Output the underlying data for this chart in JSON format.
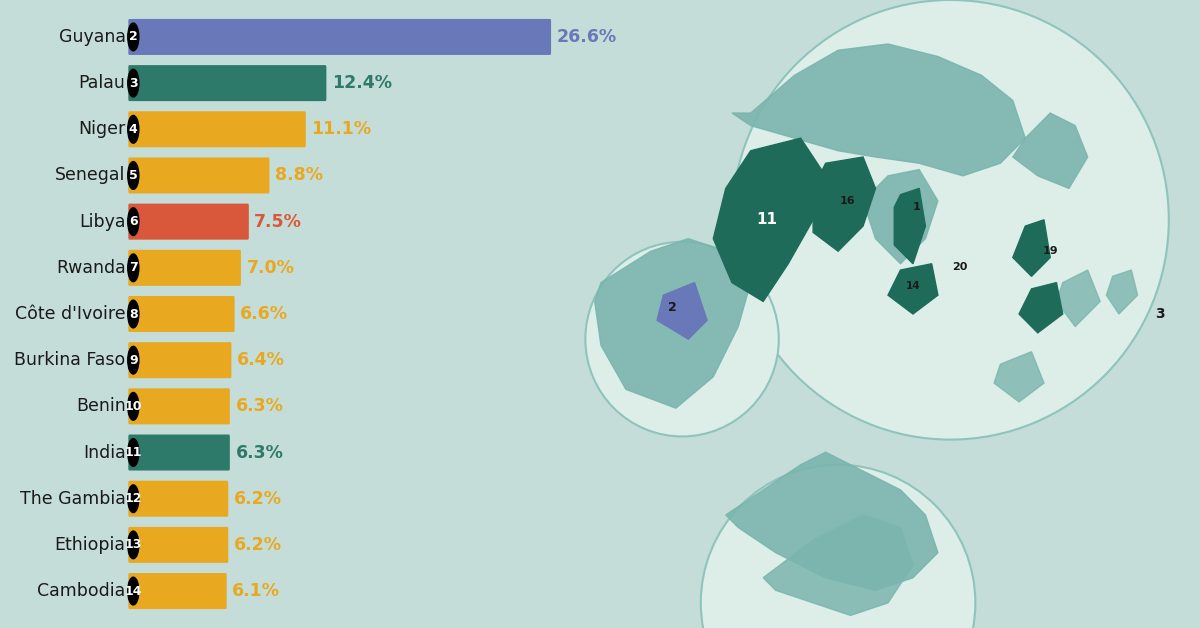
{
  "background_color": "#c5ddd8",
  "categories": [
    "Guyana",
    "Palau",
    "Niger",
    "Senegal",
    "Libya",
    "Rwanda",
    "Côte d'Ivoire",
    "Burkina Faso",
    "Benin",
    "India",
    "The Gambia",
    "Ethiopia",
    "Cambodia"
  ],
  "ranks": [
    2,
    3,
    4,
    5,
    6,
    7,
    8,
    9,
    10,
    11,
    12,
    13,
    14
  ],
  "values": [
    26.6,
    12.4,
    11.1,
    8.8,
    7.5,
    7.0,
    6.6,
    6.4,
    6.3,
    6.3,
    6.2,
    6.2,
    6.1
  ],
  "bar_colors": [
    "#6878b8",
    "#2d7a6a",
    "#e8a820",
    "#e8a820",
    "#d9573a",
    "#e8a820",
    "#e8a820",
    "#e8a820",
    "#e8a820",
    "#2d7a6a",
    "#e8a820",
    "#e8a820",
    "#e8a820"
  ],
  "value_colors": [
    "#6878b8",
    "#2d7a6a",
    "#e8a820",
    "#e8a820",
    "#d9573a",
    "#e8a820",
    "#e8a820",
    "#e8a820",
    "#e8a820",
    "#2d7a6a",
    "#e8a820",
    "#e8a820",
    "#e8a820"
  ],
  "bar_height": 0.68,
  "max_val": 28.0,
  "label_fontsize": 12.5,
  "value_fontsize": 12.5,
  "rank_fontsize": 9
}
